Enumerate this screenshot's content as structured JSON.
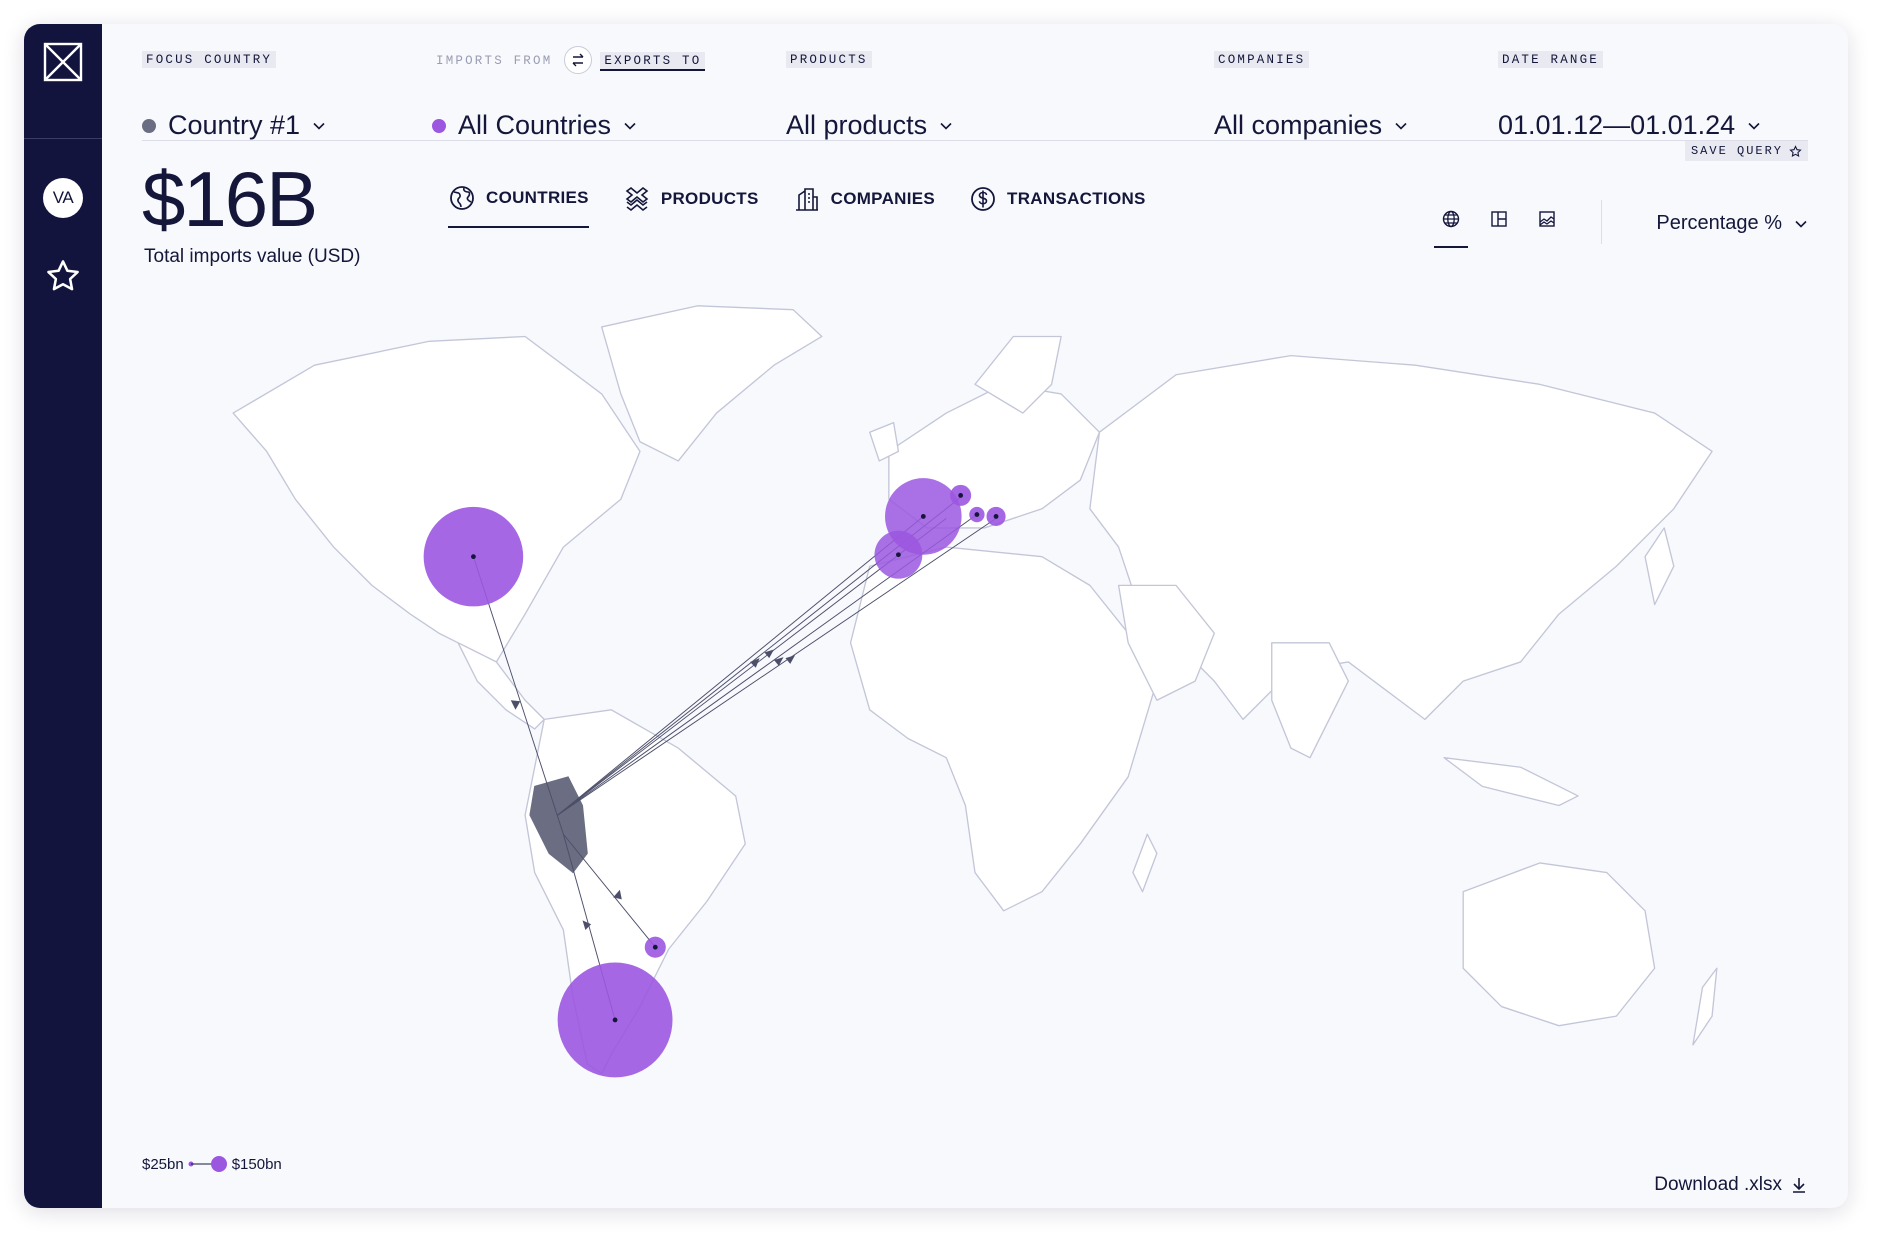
{
  "sidebar": {
    "avatar_initials": "VA"
  },
  "filters": {
    "focus_country": {
      "label": "FOCUS COUNTRY",
      "value": "Country #1",
      "dot_color": "#6b6d82"
    },
    "direction": {
      "imports_label": "IMPORTS FROM",
      "exports_label": "EXPORTS TO",
      "value": "All Countries",
      "dot_color": "#9b57e0"
    },
    "products": {
      "label": "PRODUCTS",
      "value": "All products"
    },
    "companies": {
      "label": "COMPANIES",
      "value": "All companies"
    },
    "date_range": {
      "label": "DATE RANGE",
      "value": "01.01.12—01.01.24"
    }
  },
  "save_query": "SAVE QUERY",
  "summary": {
    "value": "$16B",
    "label": "Total imports value (USD)"
  },
  "tabs": [
    {
      "label": "COUNTRIES",
      "icon": "globe-icon",
      "active": true
    },
    {
      "label": "PRODUCTS",
      "icon": "products-icon",
      "active": false
    },
    {
      "label": "COMPANIES",
      "icon": "building-icon",
      "active": false
    },
    {
      "label": "TRANSACTIONS",
      "icon": "dollar-icon",
      "active": false
    }
  ],
  "views": [
    "globe-view",
    "grid-view",
    "area-chart-view"
  ],
  "metric_select": "Percentage %",
  "legend": {
    "min": "$25bn",
    "max": "$150bn"
  },
  "download_label": "Download .xlsx",
  "colors": {
    "sidebar": "#13143d",
    "accent": "#9b57e0",
    "focus": "#6b6d82",
    "land": "#ffffff",
    "borders": "#c3c6d8"
  }
}
